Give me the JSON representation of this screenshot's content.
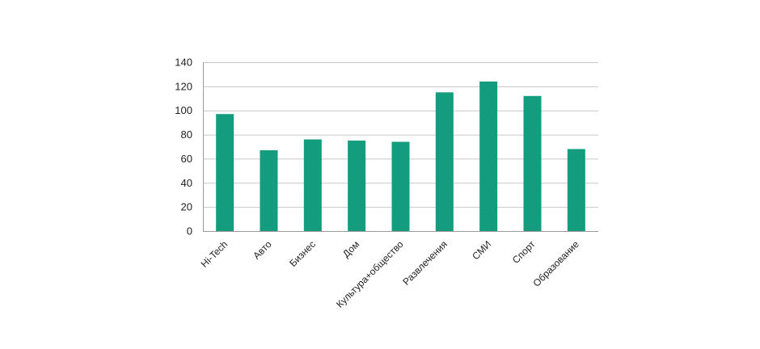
{
  "chart_data": {
    "type": "bar",
    "title": "",
    "xlabel": "",
    "ylabel": "",
    "categories": [
      "Hi-Tech",
      "Авто",
      "Бизнес",
      "Дом",
      "Культура+общество",
      "Развлечения",
      "СМИ",
      "Спорт",
      "Образование"
    ],
    "values": [
      97,
      67,
      76,
      75,
      74,
      115,
      124,
      112,
      68
    ],
    "ylim": [
      0,
      140
    ],
    "yticks": [
      0,
      20,
      40,
      60,
      80,
      100,
      120,
      140
    ],
    "ytick_labels": [
      "0",
      "20",
      "40",
      "60",
      "80",
      "100",
      "120",
      "140"
    ],
    "grid": true,
    "legend": "none",
    "bar_color": "#149c7e"
  }
}
